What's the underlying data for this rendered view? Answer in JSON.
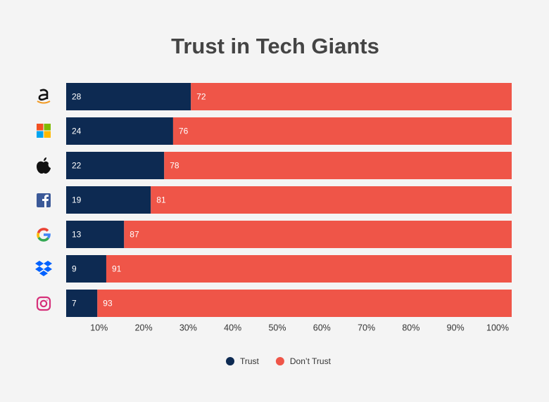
{
  "chart_data": {
    "type": "bar",
    "orientation": "horizontal",
    "stacked": true,
    "title": "Trust in Tech Giants",
    "categories": [
      null,
      null,
      null,
      null,
      null,
      null,
      null
    ],
    "series": [
      {
        "name": "Trust",
        "color": "#0d2a52",
        "values": [
          28,
          24,
          22,
          19,
          13,
          9,
          7
        ]
      },
      {
        "name": "Don’t Trust",
        "color": "#ef5548",
        "values": [
          72,
          76,
          78,
          81,
          87,
          91,
          93
        ]
      }
    ],
    "xlim": [
      0,
      100
    ],
    "xticks": [
      {
        "value": 10,
        "label": "10%"
      },
      {
        "value": 20,
        "label": "20%"
      },
      {
        "value": 30,
        "label": "30%"
      },
      {
        "value": 40,
        "label": "40%"
      },
      {
        "value": 50,
        "label": "50%"
      },
      {
        "value": 60,
        "label": "60%"
      },
      {
        "value": 70,
        "label": "70%"
      },
      {
        "value": 80,
        "label": "80%"
      },
      {
        "value": 90,
        "label": "90%"
      },
      {
        "value": 100,
        "label": "100%"
      }
    ],
    "legend": "bottom"
  }
}
